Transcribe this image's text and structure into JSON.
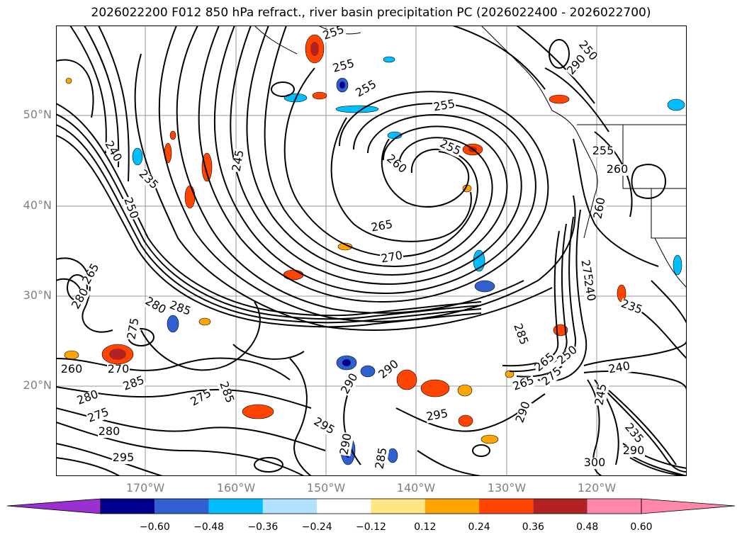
{
  "title": "2026022200 F012 850 hPa refract., river basin precipitation PC (2026022400 - 2026022700)",
  "map": {
    "lat_labels": [
      "50°N",
      "40°N",
      "30°N",
      "20°N"
    ],
    "lon_labels": [
      "170°W",
      "160°W",
      "150°W",
      "140°W",
      "130°W",
      "120°W"
    ],
    "contour_labels": [
      {
        "text": "255",
        "rot": -20
      },
      {
        "text": "255",
        "rot": -15
      },
      {
        "text": "255",
        "rot": -30
      },
      {
        "text": "255",
        "rot": -10
      },
      {
        "text": "255",
        "rot": 25
      },
      {
        "text": "260",
        "rot": 40
      },
      {
        "text": "245",
        "rot": -80
      },
      {
        "text": "240",
        "rot": 60
      },
      {
        "text": "235",
        "rot": 45
      },
      {
        "text": "250",
        "rot": 70
      },
      {
        "text": "265",
        "rot": -10
      },
      {
        "text": "270",
        "rot": -10
      },
      {
        "text": "280",
        "rot": -60
      },
      {
        "text": "265",
        "rot": -60
      },
      {
        "text": "280",
        "rot": 30
      },
      {
        "text": "285",
        "rot": 20
      },
      {
        "text": "275",
        "rot": -80
      },
      {
        "text": "260",
        "rot": 0
      },
      {
        "text": "270",
        "rot": 0
      },
      {
        "text": "285",
        "rot": -20
      },
      {
        "text": "280",
        "rot": -20
      },
      {
        "text": "275",
        "rot": -20
      },
      {
        "text": "295",
        "rot": 30
      },
      {
        "text": "290",
        "rot": -40
      },
      {
        "text": "290",
        "rot": -60
      },
      {
        "text": "295",
        "rot": -10
      },
      {
        "text": "285",
        "rot": 70
      },
      {
        "text": "265",
        "rot": -20
      },
      {
        "text": "290",
        "rot": -70
      },
      {
        "text": "240",
        "rot": -10
      },
      {
        "text": "245",
        "rot": -80
      },
      {
        "text": "235",
        "rot": 50
      },
      {
        "text": "275",
        "rot": 80
      },
      {
        "text": "240",
        "rot": 80
      },
      {
        "text": "235",
        "rot": 20
      },
      {
        "text": "250",
        "rot": -40
      },
      {
        "text": "265",
        "rot": -40
      },
      {
        "text": "275",
        "rot": -40
      },
      {
        "text": "255",
        "rot": 0
      },
      {
        "text": "260",
        "rot": 0
      },
      {
        "text": "260",
        "rot": -80
      },
      {
        "text": "250",
        "rot": 50
      },
      {
        "text": "290",
        "rot": -50
      },
      {
        "text": "285",
        "rot": -80
      },
      {
        "text": "300",
        "rot": 0
      },
      {
        "text": "290",
        "rot": 0
      },
      {
        "text": "295",
        "rot": 0
      },
      {
        "text": "280",
        "rot": 0
      },
      {
        "text": "290",
        "rot": -80
      },
      {
        "text": "285",
        "rot": 70
      },
      {
        "text": "275",
        "rot": -30
      }
    ]
  },
  "colorbar": {
    "ticks": [
      "−0.60",
      "−0.48",
      "−0.36",
      "−0.24",
      "−0.12",
      "0.12",
      "0.24",
      "0.36",
      "0.48",
      "0.60"
    ],
    "colors": [
      "#9b30d0",
      "#00008b",
      "#3060d0",
      "#00bfff",
      "#b0e2ff",
      "#ffffff",
      "#ffe680",
      "#ffa500",
      "#ff4500",
      "#b22222",
      "#ff88aa",
      "#ff88aa"
    ]
  }
}
